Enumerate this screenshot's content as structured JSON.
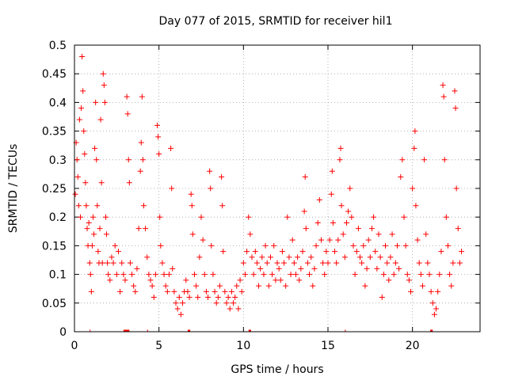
{
  "chart_data": {
    "type": "scatter",
    "title": "Day 077 of 2015, SRMTID for receiver hil1",
    "xlabel": "GPS time / hours",
    "ylabel": "SRMTID / TECUs",
    "xlim": [
      0,
      24
    ],
    "ylim": [
      0,
      0.5
    ],
    "x_ticks": [
      0,
      5,
      10,
      15,
      20
    ],
    "x_tick_labels": [
      "0",
      "5",
      "10",
      "15",
      "20"
    ],
    "y_ticks": [
      0,
      0.05,
      0.1,
      0.15,
      0.2,
      0.25,
      0.3,
      0.35,
      0.4,
      0.45,
      0.5
    ],
    "y_tick_labels": [
      "0",
      "0.05",
      "0.1",
      "0.15",
      "0.2",
      "0.25",
      "0.3",
      "0.35",
      "0.4",
      "0.45",
      "0.5"
    ],
    "grid": true,
    "marker": "plus",
    "color": "#ff0000",
    "series": [
      {
        "name": "SRMTID",
        "points": [
          [
            0.05,
            0.24
          ],
          [
            0.1,
            0.33
          ],
          [
            0.15,
            0.3
          ],
          [
            0.2,
            0.27
          ],
          [
            0.25,
            0.22
          ],
          [
            0.3,
            0.37
          ],
          [
            0.35,
            0.2
          ],
          [
            0.4,
            0.39
          ],
          [
            0.45,
            0.48
          ],
          [
            0.5,
            0.42
          ],
          [
            0.55,
            0.35
          ],
          [
            0.6,
            0.31
          ],
          [
            0.65,
            0.26
          ],
          [
            0.7,
            0.22
          ],
          [
            0.75,
            0.18
          ],
          [
            0.8,
            0.15
          ],
          [
            0.85,
            0.19
          ],
          [
            0.9,
            0.12
          ],
          [
            0.95,
            0.1
          ],
          [
            1.0,
            0.07
          ],
          [
            1.05,
            0.15
          ],
          [
            1.1,
            0.2
          ],
          [
            1.15,
            0.17
          ],
          [
            1.2,
            0.32
          ],
          [
            1.25,
            0.4
          ],
          [
            1.3,
            0.3
          ],
          [
            1.35,
            0.22
          ],
          [
            1.4,
            0.14
          ],
          [
            1.45,
            0.12
          ],
          [
            1.5,
            0.18
          ],
          [
            1.55,
            0.37
          ],
          [
            1.6,
            0.26
          ],
          [
            1.65,
            0.12
          ],
          [
            1.7,
            0.45
          ],
          [
            1.75,
            0.43
          ],
          [
            1.8,
            0.4
          ],
          [
            1.85,
            0.2
          ],
          [
            1.9,
            0.17
          ],
          [
            1.95,
            0.12
          ],
          [
            2.0,
            0.1
          ],
          [
            2.1,
            0.09
          ],
          [
            2.2,
            0.13
          ],
          [
            2.3,
            0.12
          ],
          [
            2.4,
            0.15
          ],
          [
            2.5,
            0.1
          ],
          [
            2.6,
            0.14
          ],
          [
            2.7,
            0.07
          ],
          [
            2.8,
            0.12
          ],
          [
            2.9,
            0.1
          ],
          [
            3.0,
            0.09
          ],
          [
            3.1,
            0.41
          ],
          [
            3.15,
            0.38
          ],
          [
            3.2,
            0.3
          ],
          [
            3.25,
            0.26
          ],
          [
            3.3,
            0.12
          ],
          [
            3.4,
            0.1
          ],
          [
            3.5,
            0.08
          ],
          [
            3.6,
            0.07
          ],
          [
            3.7,
            0.11
          ],
          [
            3.8,
            0.18
          ],
          [
            3.9,
            0.28
          ],
          [
            3.95,
            0.33
          ],
          [
            4.0,
            0.41
          ],
          [
            4.05,
            0.3
          ],
          [
            4.1,
            0.22
          ],
          [
            4.2,
            0.18
          ],
          [
            4.3,
            0.13
          ],
          [
            4.4,
            0.1
          ],
          [
            4.5,
            0.09
          ],
          [
            4.6,
            0.08
          ],
          [
            4.7,
            0.06
          ],
          [
            4.8,
            0.1
          ],
          [
            4.9,
            0.36
          ],
          [
            4.95,
            0.34
          ],
          [
            5.0,
            0.31
          ],
          [
            5.05,
            0.2
          ],
          [
            5.1,
            0.15
          ],
          [
            5.2,
            0.12
          ],
          [
            5.3,
            0.1
          ],
          [
            5.4,
            0.08
          ],
          [
            5.5,
            0.07
          ],
          [
            5.6,
            0.1
          ],
          [
            5.7,
            0.32
          ],
          [
            5.75,
            0.25
          ],
          [
            5.8,
            0.11
          ],
          [
            5.9,
            0.07
          ],
          [
            6.0,
            0.05
          ],
          [
            6.1,
            0.04
          ],
          [
            6.2,
            0.06
          ],
          [
            6.3,
            0.03
          ],
          [
            6.4,
            0.05
          ],
          [
            6.5,
            0.07
          ],
          [
            6.6,
            0.09
          ],
          [
            6.7,
            0.07
          ],
          [
            6.8,
            0.06
          ],
          [
            6.9,
            0.24
          ],
          [
            6.95,
            0.22
          ],
          [
            7.0,
            0.17
          ],
          [
            7.1,
            0.1
          ],
          [
            7.2,
            0.08
          ],
          [
            7.3,
            0.06
          ],
          [
            7.4,
            0.13
          ],
          [
            7.5,
            0.2
          ],
          [
            7.6,
            0.16
          ],
          [
            7.7,
            0.1
          ],
          [
            7.8,
            0.07
          ],
          [
            7.9,
            0.06
          ],
          [
            8.0,
            0.28
          ],
          [
            8.05,
            0.25
          ],
          [
            8.1,
            0.15
          ],
          [
            8.2,
            0.1
          ],
          [
            8.3,
            0.07
          ],
          [
            8.4,
            0.05
          ],
          [
            8.5,
            0.06
          ],
          [
            8.6,
            0.08
          ],
          [
            8.7,
            0.27
          ],
          [
            8.75,
            0.22
          ],
          [
            8.8,
            0.14
          ],
          [
            8.9,
            0.07
          ],
          [
            9.0,
            0.05
          ],
          [
            9.1,
            0.06
          ],
          [
            9.2,
            0.04
          ],
          [
            9.3,
            0.07
          ],
          [
            9.4,
            0.05
          ],
          [
            9.5,
            0.06
          ],
          [
            9.6,
            0.08
          ],
          [
            9.7,
            0.04
          ],
          [
            9.8,
            0.09
          ],
          [
            9.9,
            0.07
          ],
          [
            10.0,
            0.12
          ],
          [
            10.1,
            0.1
          ],
          [
            10.2,
            0.14
          ],
          [
            10.3,
            0.2
          ],
          [
            10.4,
            0.17
          ],
          [
            10.5,
            0.13
          ],
          [
            10.6,
            0.1
          ],
          [
            10.7,
            0.14
          ],
          [
            10.8,
            0.12
          ],
          [
            10.9,
            0.08
          ],
          [
            11.0,
            0.11
          ],
          [
            11.1,
            0.13
          ],
          [
            11.2,
            0.1
          ],
          [
            11.3,
            0.15
          ],
          [
            11.4,
            0.12
          ],
          [
            11.5,
            0.08
          ],
          [
            11.6,
            0.13
          ],
          [
            11.7,
            0.1
          ],
          [
            11.8,
            0.15
          ],
          [
            11.9,
            0.09
          ],
          [
            12.0,
            0.12
          ],
          [
            12.1,
            0.11
          ],
          [
            12.2,
            0.09
          ],
          [
            12.3,
            0.14
          ],
          [
            12.4,
            0.12
          ],
          [
            12.5,
            0.08
          ],
          [
            12.6,
            0.2
          ],
          [
            12.7,
            0.13
          ],
          [
            12.8,
            0.1
          ],
          [
            12.9,
            0.16
          ],
          [
            13.0,
            0.12
          ],
          [
            13.1,
            0.1
          ],
          [
            13.2,
            0.13
          ],
          [
            13.3,
            0.09
          ],
          [
            13.4,
            0.11
          ],
          [
            13.5,
            0.14
          ],
          [
            13.6,
            0.21
          ],
          [
            13.65,
            0.27
          ],
          [
            13.7,
            0.18
          ],
          [
            13.8,
            0.12
          ],
          [
            13.9,
            0.1
          ],
          [
            14.0,
            0.13
          ],
          [
            14.1,
            0.08
          ],
          [
            14.2,
            0.11
          ],
          [
            14.3,
            0.15
          ],
          [
            14.4,
            0.19
          ],
          [
            14.5,
            0.23
          ],
          [
            14.6,
            0.16
          ],
          [
            14.7,
            0.12
          ],
          [
            14.8,
            0.1
          ],
          [
            14.9,
            0.14
          ],
          [
            15.0,
            0.12
          ],
          [
            15.1,
            0.16
          ],
          [
            15.2,
            0.24
          ],
          [
            15.25,
            0.28
          ],
          [
            15.3,
            0.19
          ],
          [
            15.4,
            0.14
          ],
          [
            15.5,
            0.12
          ],
          [
            15.6,
            0.16
          ],
          [
            15.7,
            0.3
          ],
          [
            15.75,
            0.32
          ],
          [
            15.8,
            0.22
          ],
          [
            15.9,
            0.17
          ],
          [
            16.0,
            0.13
          ],
          [
            16.1,
            0.19
          ],
          [
            16.2,
            0.21
          ],
          [
            16.3,
            0.25
          ],
          [
            16.4,
            0.2
          ],
          [
            16.5,
            0.15
          ],
          [
            16.6,
            0.1
          ],
          [
            16.7,
            0.14
          ],
          [
            16.8,
            0.18
          ],
          [
            16.9,
            0.13
          ],
          [
            17.0,
            0.12
          ],
          [
            17.1,
            0.15
          ],
          [
            17.2,
            0.08
          ],
          [
            17.3,
            0.11
          ],
          [
            17.4,
            0.16
          ],
          [
            17.5,
            0.13
          ],
          [
            17.6,
            0.18
          ],
          [
            17.7,
            0.2
          ],
          [
            17.8,
            0.14
          ],
          [
            17.9,
            0.11
          ],
          [
            18.0,
            0.17
          ],
          [
            18.1,
            0.13
          ],
          [
            18.2,
            0.06
          ],
          [
            18.3,
            0.1
          ],
          [
            18.4,
            0.15
          ],
          [
            18.5,
            0.12
          ],
          [
            18.6,
            0.09
          ],
          [
            18.7,
            0.13
          ],
          [
            18.8,
            0.17
          ],
          [
            18.9,
            0.1
          ],
          [
            19.0,
            0.12
          ],
          [
            19.1,
            0.15
          ],
          [
            19.2,
            0.11
          ],
          [
            19.3,
            0.27
          ],
          [
            19.4,
            0.3
          ],
          [
            19.5,
            0.2
          ],
          [
            19.6,
            0.15
          ],
          [
            19.7,
            0.1
          ],
          [
            19.8,
            0.09
          ],
          [
            19.9,
            0.07
          ],
          [
            20.0,
            0.25
          ],
          [
            20.1,
            0.32
          ],
          [
            20.15,
            0.35
          ],
          [
            20.2,
            0.22
          ],
          [
            20.3,
            0.16
          ],
          [
            20.4,
            0.12
          ],
          [
            20.5,
            0.1
          ],
          [
            20.6,
            0.08
          ],
          [
            20.7,
            0.3
          ],
          [
            20.8,
            0.17
          ],
          [
            20.9,
            0.12
          ],
          [
            21.0,
            0.1
          ],
          [
            21.1,
            0.07
          ],
          [
            21.2,
            0.05
          ],
          [
            21.3,
            0.03
          ],
          [
            21.4,
            0.04
          ],
          [
            21.5,
            0.07
          ],
          [
            21.6,
            0.1
          ],
          [
            21.7,
            0.14
          ],
          [
            21.8,
            0.43
          ],
          [
            21.85,
            0.41
          ],
          [
            21.9,
            0.3
          ],
          [
            22.0,
            0.2
          ],
          [
            22.1,
            0.15
          ],
          [
            22.2,
            0.1
          ],
          [
            22.3,
            0.08
          ],
          [
            22.4,
            0.12
          ],
          [
            22.5,
            0.42
          ],
          [
            22.55,
            0.39
          ],
          [
            22.6,
            0.25
          ],
          [
            22.7,
            0.18
          ],
          [
            22.8,
            0.12
          ],
          [
            22.9,
            0.14
          ]
        ]
      }
    ],
    "zero_line_segments": [
      [
        0.9,
        0.95
      ],
      [
        2.9,
        3.25
      ],
      [
        4.3,
        4.35
      ],
      [
        6.7,
        6.85
      ],
      [
        10.3,
        10.45
      ],
      [
        16.0,
        16.05
      ],
      [
        21.05,
        21.2
      ]
    ]
  }
}
